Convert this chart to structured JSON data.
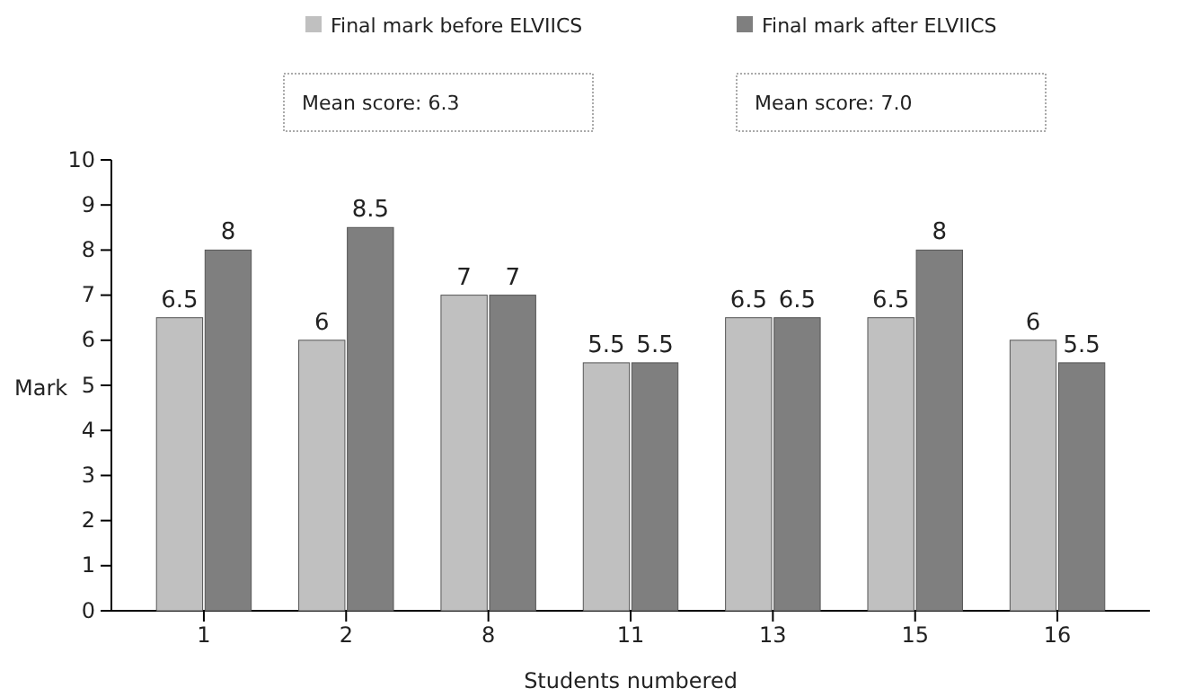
{
  "chart_data": {
    "type": "bar",
    "xlabel": "Students numbered",
    "ylabel": "Mark",
    "categories": [
      "1",
      "2",
      "8",
      "11",
      "13",
      "15",
      "16"
    ],
    "series": [
      {
        "name": "Final mark before ELVIICS",
        "color": "#c0c0c0",
        "values": [
          6.5,
          6,
          7,
          5.5,
          6.5,
          6.5,
          6
        ]
      },
      {
        "name": "Final mark after ELVIICS",
        "color": "#7f7f7f",
        "values": [
          8,
          8.5,
          7,
          5.5,
          6.5,
          8,
          5.5
        ]
      }
    ],
    "ylim": [
      0,
      10
    ],
    "yticks": [
      0,
      1,
      2,
      3,
      4,
      5,
      6,
      7,
      8,
      9,
      10
    ],
    "annotations": [
      "Mean score: 6.3",
      "Mean score: 7.0"
    ],
    "data_labels": true,
    "legend": "top",
    "grid": false
  }
}
